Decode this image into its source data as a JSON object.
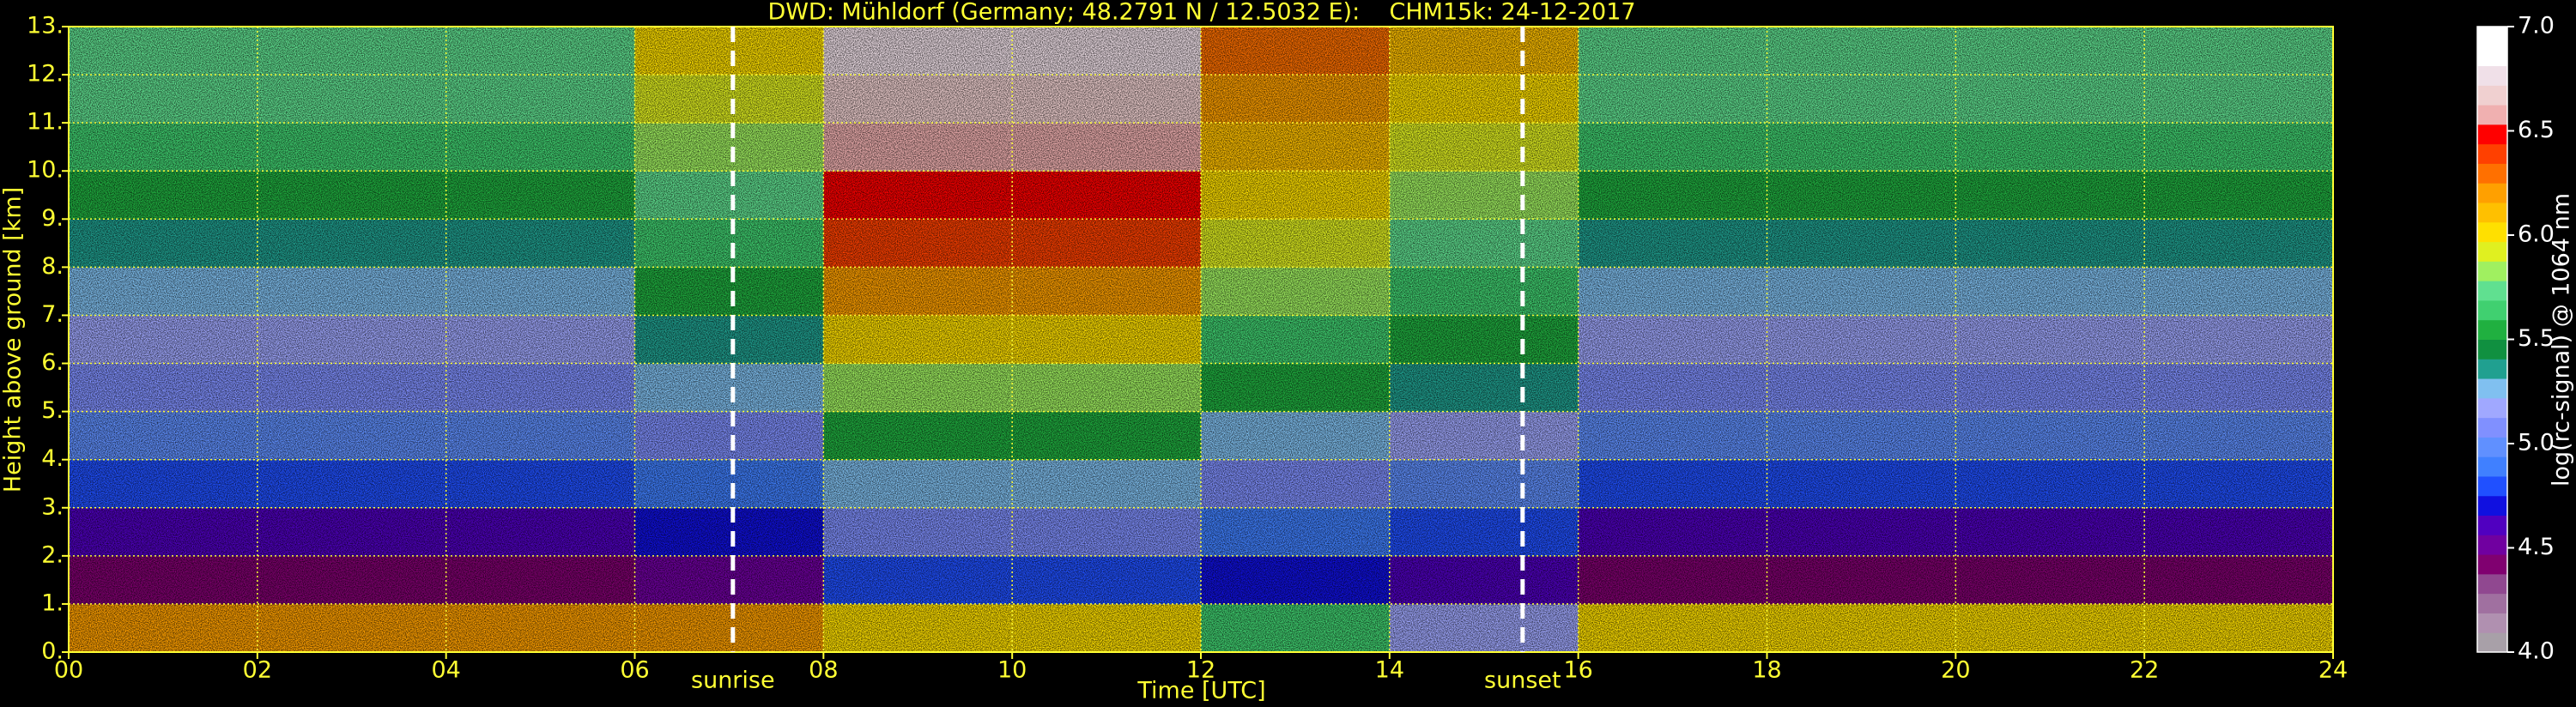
{
  "chart_data": {
    "type": "heatmap",
    "title": "DWD: Mühldorf (Germany; 48.2791 N / 12.5032 E):    CHM15k: 24-12-2017",
    "xlabel": "Time [UTC]",
    "ylabel": "Height above ground [km]",
    "x_edges": [
      0,
      2,
      4,
      6,
      8,
      10,
      12,
      14,
      16,
      18,
      20,
      22,
      24
    ],
    "y_edges": [
      0,
      1,
      2,
      3,
      4,
      5,
      6,
      7,
      8,
      9,
      10,
      11,
      12,
      13
    ],
    "values": [
      [
        6.2,
        6.2,
        6.2,
        6.2,
        6.0,
        6.0,
        5.6,
        5.2,
        6.0,
        6.0,
        6.0,
        6.0
      ],
      [
        4.4,
        4.4,
        4.4,
        4.5,
        4.8,
        4.8,
        4.7,
        4.6,
        4.4,
        4.4,
        4.4,
        4.4
      ],
      [
        4.6,
        4.6,
        4.6,
        4.7,
        5.1,
        5.1,
        4.9,
        4.8,
        4.6,
        4.6,
        4.6,
        4.6
      ],
      [
        4.8,
        4.8,
        4.8,
        4.9,
        5.3,
        5.3,
        5.1,
        5.0,
        4.8,
        4.8,
        4.8,
        4.8
      ],
      [
        5.0,
        5.0,
        5.0,
        5.1,
        5.5,
        5.5,
        5.3,
        5.2,
        5.0,
        5.0,
        5.0,
        5.0
      ],
      [
        5.1,
        5.1,
        5.1,
        5.3,
        5.8,
        5.8,
        5.5,
        5.4,
        5.1,
        5.1,
        5.1,
        5.1
      ],
      [
        5.2,
        5.2,
        5.2,
        5.4,
        6.0,
        6.0,
        5.6,
        5.5,
        5.2,
        5.2,
        5.2,
        5.2
      ],
      [
        5.3,
        5.3,
        5.3,
        5.5,
        6.2,
        6.2,
        5.8,
        5.6,
        5.3,
        5.3,
        5.3,
        5.3
      ],
      [
        5.4,
        5.4,
        5.4,
        5.6,
        6.4,
        6.4,
        5.9,
        5.7,
        5.4,
        5.4,
        5.4,
        5.4
      ],
      [
        5.5,
        5.5,
        5.5,
        5.7,
        6.5,
        6.5,
        6.0,
        5.8,
        5.5,
        5.5,
        5.5,
        5.5
      ],
      [
        5.6,
        5.6,
        5.6,
        5.8,
        6.6,
        6.6,
        6.1,
        5.9,
        5.6,
        5.6,
        5.6,
        5.6
      ],
      [
        5.7,
        5.7,
        5.7,
        5.9,
        6.7,
        6.7,
        6.2,
        6.0,
        5.7,
        5.7,
        5.7,
        5.7
      ],
      [
        5.7,
        5.7,
        5.7,
        6.0,
        6.8,
        6.8,
        6.3,
        6.1,
        5.7,
        5.7,
        5.7,
        5.7
      ]
    ],
    "xlim": [
      0,
      24
    ],
    "xticks": [
      {
        "value": 0,
        "label": "00"
      },
      {
        "value": 2,
        "label": "02"
      },
      {
        "value": 4,
        "label": "04"
      },
      {
        "value": 6,
        "label": "06"
      },
      {
        "value": 8,
        "label": "08"
      },
      10,
      12,
      14,
      16,
      18,
      20,
      22,
      24
    ],
    "ylim": [
      0,
      13
    ],
    "yticks": [
      {
        "value": 0,
        "label": "0."
      },
      {
        "value": 1,
        "label": "1."
      },
      {
        "value": 2,
        "label": "2."
      },
      {
        "value": 3,
        "label": "3."
      },
      {
        "value": 4,
        "label": "4."
      },
      {
        "value": 5,
        "label": "5."
      },
      {
        "value": 6,
        "label": "6."
      },
      {
        "value": 7,
        "label": "7."
      },
      {
        "value": 8,
        "label": "8."
      },
      {
        "value": 9,
        "label": "9."
      },
      {
        "value": 10,
        "label": "10."
      },
      {
        "value": 11,
        "label": "11."
      },
      {
        "value": 12,
        "label": "12."
      },
      {
        "value": 13,
        "label": "13."
      }
    ],
    "grid": true,
    "annotations": [
      {
        "label": "sunrise",
        "x": 7.04
      },
      {
        "label": "sunset",
        "x": 15.41
      }
    ],
    "colorbar": {
      "label": "log(rc-signal) @ 1064 nm",
      "lim": [
        4.0,
        7.0
      ],
      "ticks": [
        {
          "value": 4.0,
          "label": "4.0"
        },
        {
          "value": 4.5,
          "label": "4.5"
        },
        {
          "value": 5.0,
          "label": "5.0"
        },
        {
          "value": 5.5,
          "label": "5.5"
        },
        {
          "value": 6.0,
          "label": "6.0"
        },
        {
          "value": 6.5,
          "label": "6.5"
        },
        {
          "value": 7.0,
          "label": "7.0"
        }
      ],
      "colors": [
        "#a8a0a8",
        "#b090b0",
        "#a070a0",
        "#904890",
        "#800070",
        "#7000a0",
        "#5000c0",
        "#1010e0",
        "#2050ff",
        "#4080ff",
        "#6090ff",
        "#8090ff",
        "#a0a8ff",
        "#80c0f0",
        "#20a090",
        "#109040",
        "#20b040",
        "#40d070",
        "#60e090",
        "#a0f060",
        "#e0f020",
        "#ffe000",
        "#ffc000",
        "#ffa000",
        "#ff7000",
        "#ff4000",
        "#ff0000",
        "#f0b0b0",
        "#f0d0d0",
        "#f0e0e8",
        "#ffffff",
        "#ffffff"
      ]
    }
  }
}
